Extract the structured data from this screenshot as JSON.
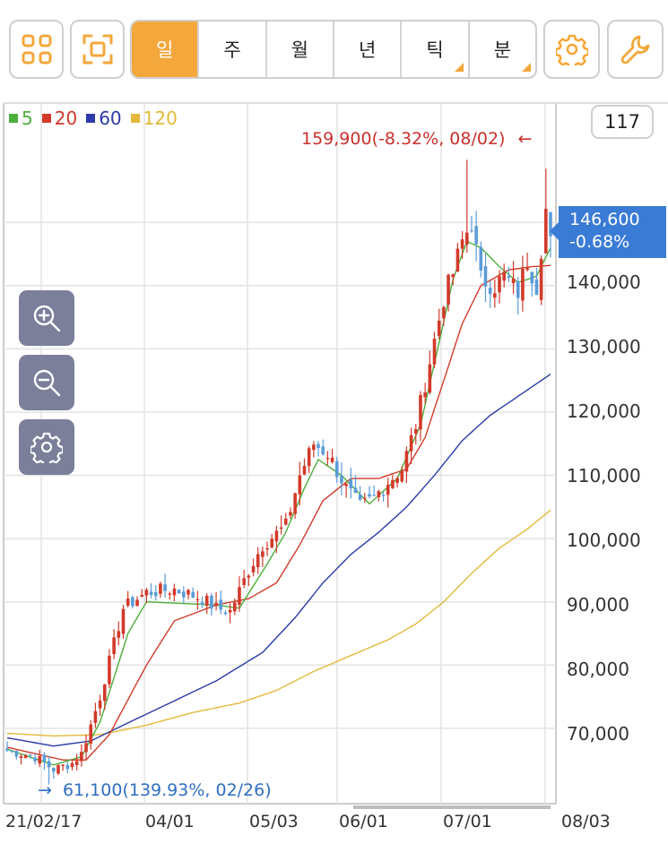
{
  "toolbar": {
    "periods": [
      {
        "label": "일",
        "active": true,
        "has_menu": false
      },
      {
        "label": "주",
        "active": false,
        "has_menu": false
      },
      {
        "label": "월",
        "active": false,
        "has_menu": false
      },
      {
        "label": "년",
        "active": false,
        "has_menu": false
      },
      {
        "label": "틱",
        "active": false,
        "has_menu": true
      },
      {
        "label": "분",
        "active": false,
        "has_menu": true
      }
    ],
    "icons": [
      "grid-layout-icon",
      "fullscreen-icon",
      "gear-icon",
      "wrench-icon"
    ],
    "accent": "#f4a73b"
  },
  "count_box": "117",
  "legend": [
    {
      "label": "5",
      "color": "#4caf3a"
    },
    {
      "label": "20",
      "color": "#d23a2a"
    },
    {
      "label": "60",
      "color": "#2b3aa8"
    },
    {
      "label": "120",
      "color": "#e2b93b"
    }
  ],
  "side_controls": [
    "zoom-in-icon",
    "zoom-out-icon",
    "gear-icon"
  ],
  "chart_data": {
    "type": "candlestick",
    "y_ticks": [
      "140,000",
      "130,000",
      "120,000",
      "110,000",
      "100,000",
      "90,000",
      "80,000",
      "70,000"
    ],
    "y_tick_values": [
      140000,
      130000,
      120000,
      110000,
      100000,
      90000,
      80000,
      70000
    ],
    "x_ticks": [
      "21/02/17",
      "04/01",
      "05/03",
      "06/01",
      "07/01",
      "08/03"
    ],
    "ylim": [
      59500,
      162500
    ],
    "grid": true,
    "current_price": {
      "price": "146,600",
      "change": "-0.68%",
      "value": 146600
    },
    "high_annotation": {
      "text": "159,900(-8.32%, 08/02)",
      "value": 159900,
      "arrow": "←"
    },
    "low_annotation": {
      "text": "61,100(139.93%, 02/26)",
      "value": 61100,
      "arrow": "→"
    },
    "close_anchors": [
      [
        0,
        66500
      ],
      [
        6,
        65500
      ],
      [
        10,
        63500
      ],
      [
        14,
        64500
      ],
      [
        16,
        66000
      ],
      [
        20,
        75000
      ],
      [
        25,
        89000
      ],
      [
        30,
        91500
      ],
      [
        36,
        92000
      ],
      [
        42,
        90500
      ],
      [
        45,
        89000
      ],
      [
        48,
        88500
      ],
      [
        52,
        95000
      ],
      [
        55,
        99000
      ],
      [
        60,
        102000
      ],
      [
        63,
        110000
      ],
      [
        66,
        115000
      ],
      [
        69,
        113500
      ],
      [
        73,
        108000
      ],
      [
        76,
        105000
      ],
      [
        79,
        106500
      ],
      [
        82,
        109000
      ],
      [
        85,
        111000
      ],
      [
        88,
        118000
      ],
      [
        91,
        128000
      ],
      [
        94,
        138000
      ],
      [
        96,
        142000
      ],
      [
        98,
        147000
      ],
      [
        100,
        150000
      ],
      [
        102,
        141000
      ],
      [
        105,
        140000
      ],
      [
        107,
        141500
      ],
      [
        110,
        139000
      ],
      [
        112,
        144000
      ],
      [
        114,
        140000
      ],
      [
        116,
        152000
      ],
      [
        117,
        146600
      ]
    ],
    "ma5_anchors": [
      [
        0,
        66700
      ],
      [
        10,
        64200
      ],
      [
        16,
        65500
      ],
      [
        20,
        71000
      ],
      [
        26,
        85000
      ],
      [
        30,
        90000
      ],
      [
        45,
        89500
      ],
      [
        50,
        89000
      ],
      [
        56,
        96000
      ],
      [
        60,
        101000
      ],
      [
        64,
        108000
      ],
      [
        67,
        112500
      ],
      [
        72,
        110000
      ],
      [
        78,
        105500
      ],
      [
        84,
        109500
      ],
      [
        89,
        118000
      ],
      [
        93,
        131000
      ],
      [
        96,
        141000
      ],
      [
        99,
        147000
      ],
      [
        102,
        146000
      ],
      [
        106,
        143000
      ],
      [
        110,
        140500
      ],
      [
        114,
        141500
      ],
      [
        117,
        146000
      ]
    ],
    "ma20_anchors": [
      [
        0,
        67000
      ],
      [
        12,
        65000
      ],
      [
        17,
        65000
      ],
      [
        22,
        69000
      ],
      [
        30,
        80000
      ],
      [
        36,
        87000
      ],
      [
        45,
        89500
      ],
      [
        52,
        90500
      ],
      [
        58,
        93000
      ],
      [
        63,
        99000
      ],
      [
        68,
        106000
      ],
      [
        74,
        109500
      ],
      [
        80,
        109500
      ],
      [
        86,
        111000
      ],
      [
        90,
        116000
      ],
      [
        94,
        125000
      ],
      [
        98,
        134000
      ],
      [
        102,
        140000
      ],
      [
        108,
        142500
      ],
      [
        113,
        143000
      ],
      [
        117,
        143200
      ]
    ],
    "ma60_anchors": [
      [
        0,
        68500
      ],
      [
        10,
        67200
      ],
      [
        18,
        68000
      ],
      [
        25,
        70500
      ],
      [
        35,
        74000
      ],
      [
        45,
        77500
      ],
      [
        55,
        82000
      ],
      [
        62,
        87500
      ],
      [
        68,
        93000
      ],
      [
        74,
        97500
      ],
      [
        80,
        101000
      ],
      [
        86,
        105000
      ],
      [
        92,
        110000
      ],
      [
        98,
        115500
      ],
      [
        104,
        119500
      ],
      [
        110,
        122500
      ],
      [
        117,
        126000
      ]
    ],
    "ma120_anchors": [
      [
        0,
        69200
      ],
      [
        10,
        68800
      ],
      [
        20,
        69000
      ],
      [
        30,
        70500
      ],
      [
        40,
        72500
      ],
      [
        50,
        74000
      ],
      [
        58,
        76000
      ],
      [
        66,
        79000
      ],
      [
        74,
        81500
      ],
      [
        82,
        84000
      ],
      [
        88,
        86500
      ],
      [
        94,
        90000
      ],
      [
        100,
        94500
      ],
      [
        106,
        98500
      ],
      [
        112,
        101500
      ],
      [
        117,
        104500
      ]
    ]
  }
}
